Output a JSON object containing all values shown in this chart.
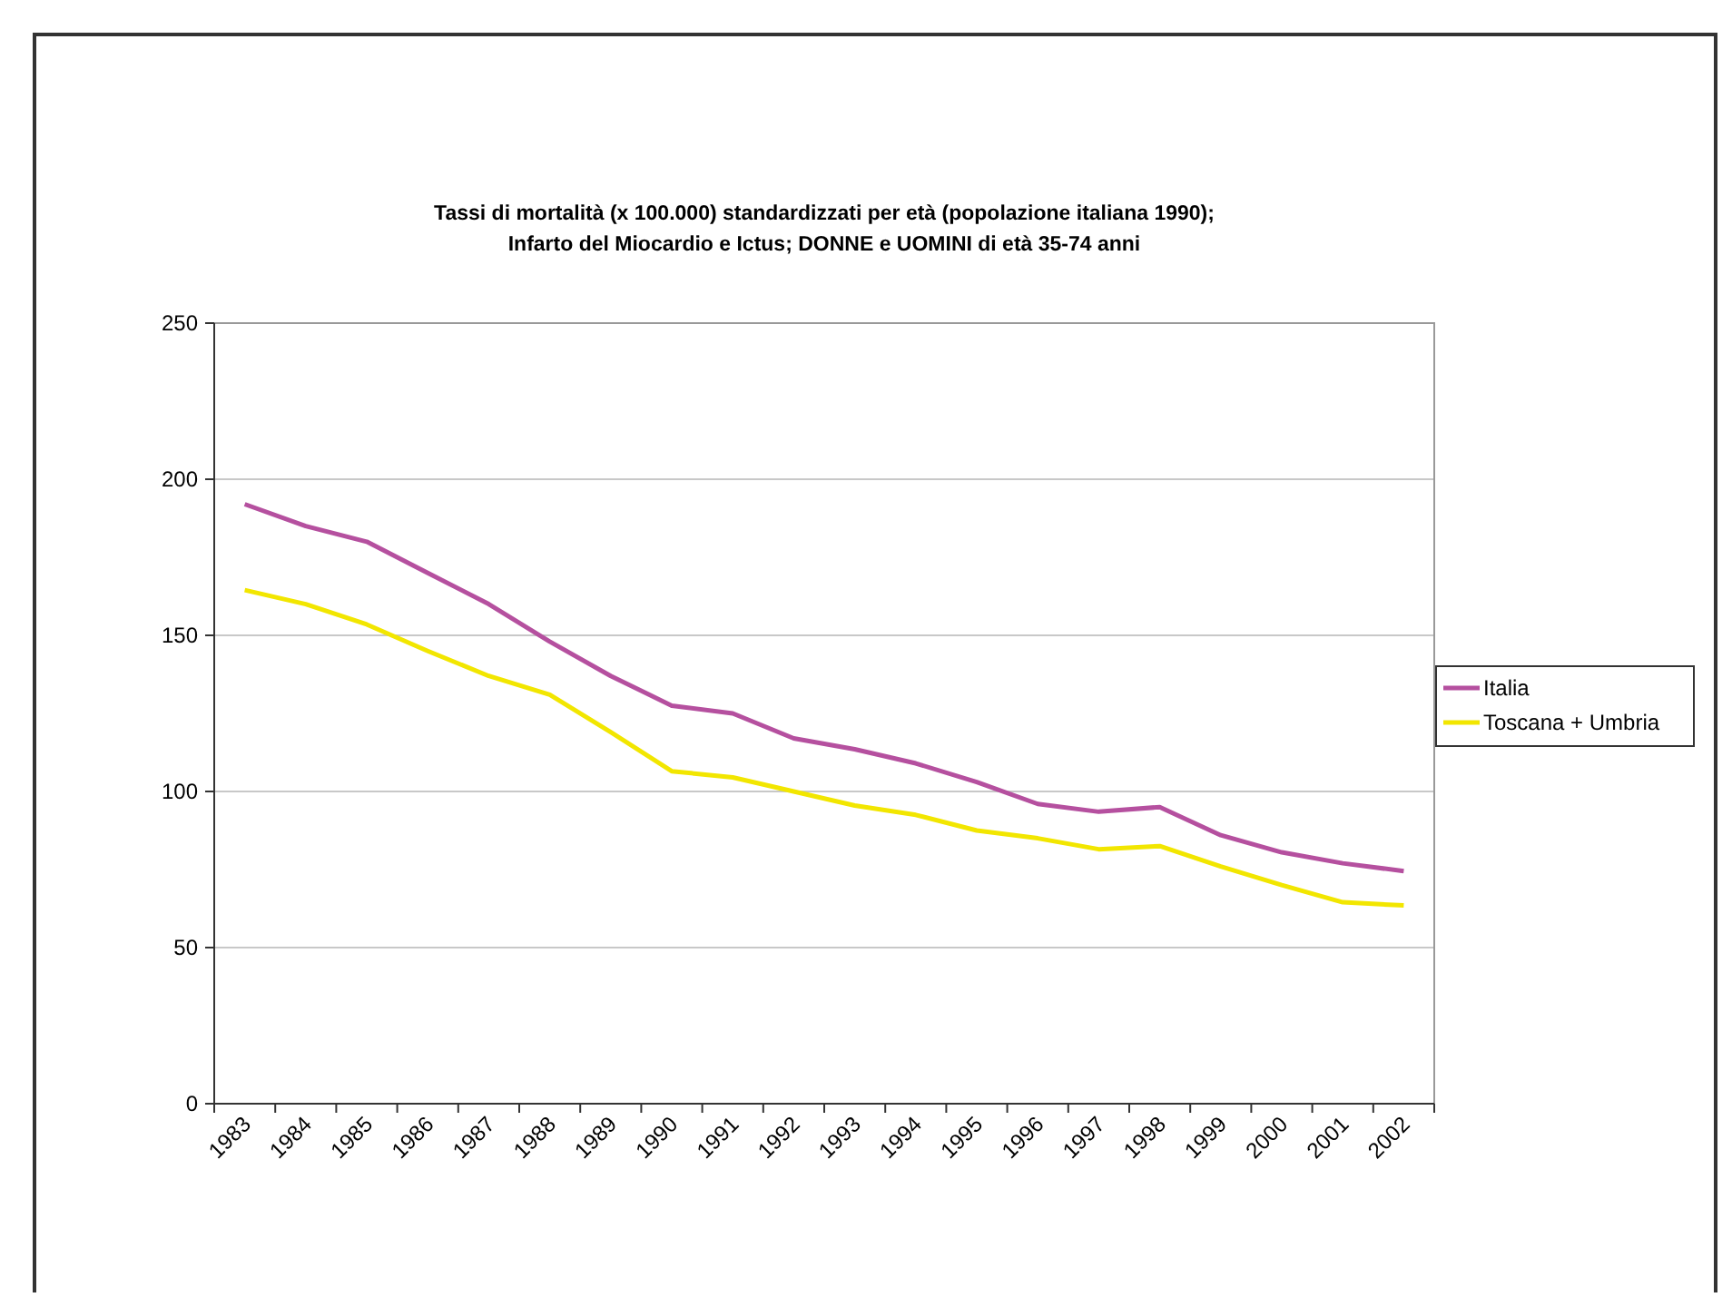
{
  "chart_data": {
    "type": "line",
    "title": "Tassi di mortalità (x 100.000) standardizzati per età (popolazione italiana 1990);\nInfarto del Miocardio e Ictus; DONNE e UOMINI di età 35-74 anni",
    "categories": [
      "1983",
      "1984",
      "1985",
      "1986",
      "1987",
      "1988",
      "1989",
      "1990",
      "1991",
      "1992",
      "1993",
      "1994",
      "1995",
      "1996",
      "1997",
      "1998",
      "1999",
      "2000",
      "2001",
      "2002"
    ],
    "series": [
      {
        "name": "Italia",
        "color": "#b5509f",
        "values": [
          192,
          185,
          180,
          170,
          160,
          148,
          137,
          127.5,
          125,
          117,
          113.5,
          109,
          103,
          96,
          93.5,
          95,
          86,
          80.5,
          77,
          74.5
        ]
      },
      {
        "name": "Toscana + Umbria",
        "color": "#f2e600",
        "values": [
          164.5,
          160,
          153.5,
          145,
          137,
          131,
          119,
          106.5,
          104.5,
          100,
          95.5,
          92.5,
          87.5,
          85,
          81.5,
          82.5,
          76,
          70,
          64.5,
          63.5
        ]
      }
    ],
    "ylim": [
      0,
      250
    ],
    "yticks": [
      0,
      50,
      100,
      150,
      200,
      250
    ],
    "grid": "y",
    "legend": "right",
    "marker": "none",
    "line_style": "solid"
  }
}
